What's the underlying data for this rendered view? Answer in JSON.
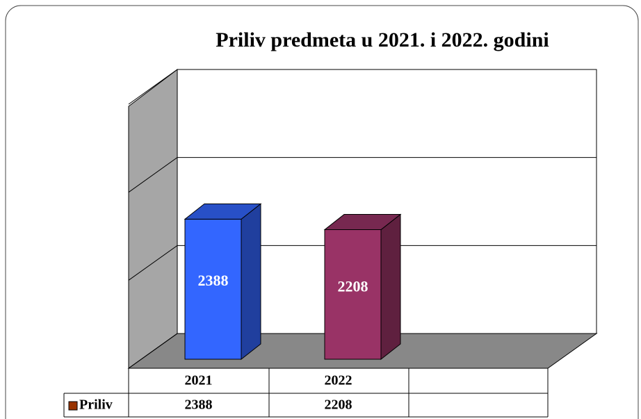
{
  "chart_data": {
    "type": "bar3d",
    "title": "Priliv predmeta u 2021. i 2022. godini",
    "categories": [
      "2021",
      "2022"
    ],
    "series": [
      {
        "name": "Priliv",
        "color": "#993300",
        "colors": [
          "#3366ff",
          "#993366"
        ],
        "values": [
          2388,
          2208
        ]
      }
    ],
    "ylim": [
      0,
      4500
    ],
    "yticks": [
      0,
      1500,
      3000,
      4500
    ],
    "grid": true
  }
}
